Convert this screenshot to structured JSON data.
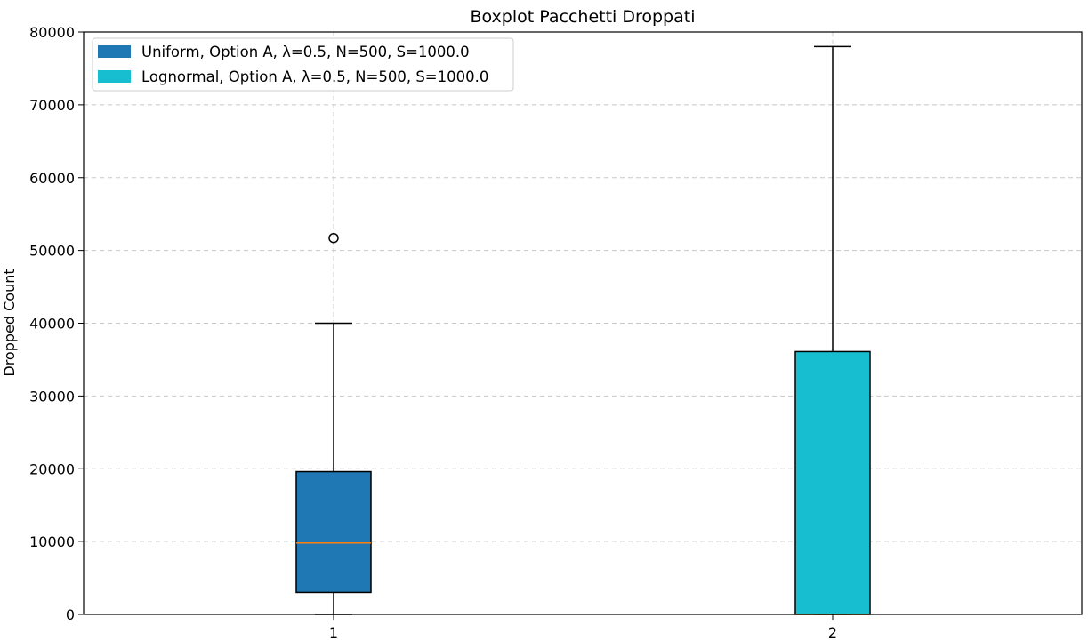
{
  "chart_data": {
    "type": "boxplot",
    "title": "Boxplot Pacchetti Droppati",
    "xlabel": "",
    "ylabel": "Dropped Count",
    "ylim": [
      0,
      80000
    ],
    "yticks": [
      0,
      10000,
      20000,
      30000,
      40000,
      50000,
      60000,
      70000,
      80000
    ],
    "ytick_labels": [
      "0",
      "10000",
      "20000",
      "30000",
      "40000",
      "50000",
      "60000",
      "70000",
      "80000"
    ],
    "categories": [
      "1",
      "2"
    ],
    "grid": true,
    "legend_position": "top-left",
    "series": [
      {
        "name": "Uniform, Option A, λ=0.5, N=500, S=1000.0",
        "color": "#1f77b4",
        "whisker_low": 0,
        "q1": 3000,
        "median": 9800,
        "q3": 19600,
        "whisker_high": 40000,
        "outliers": [
          51700
        ]
      },
      {
        "name": "Lognormal, Option A, λ=0.5, N=500, S=1000.0",
        "color": "#17becf",
        "whisker_low": 0,
        "q1": 0,
        "median": 0,
        "q3": 36100,
        "whisker_high": 78000,
        "outliers": []
      }
    ],
    "median_color": "#ff7f0e",
    "grid_color": "#c8c8c8"
  }
}
